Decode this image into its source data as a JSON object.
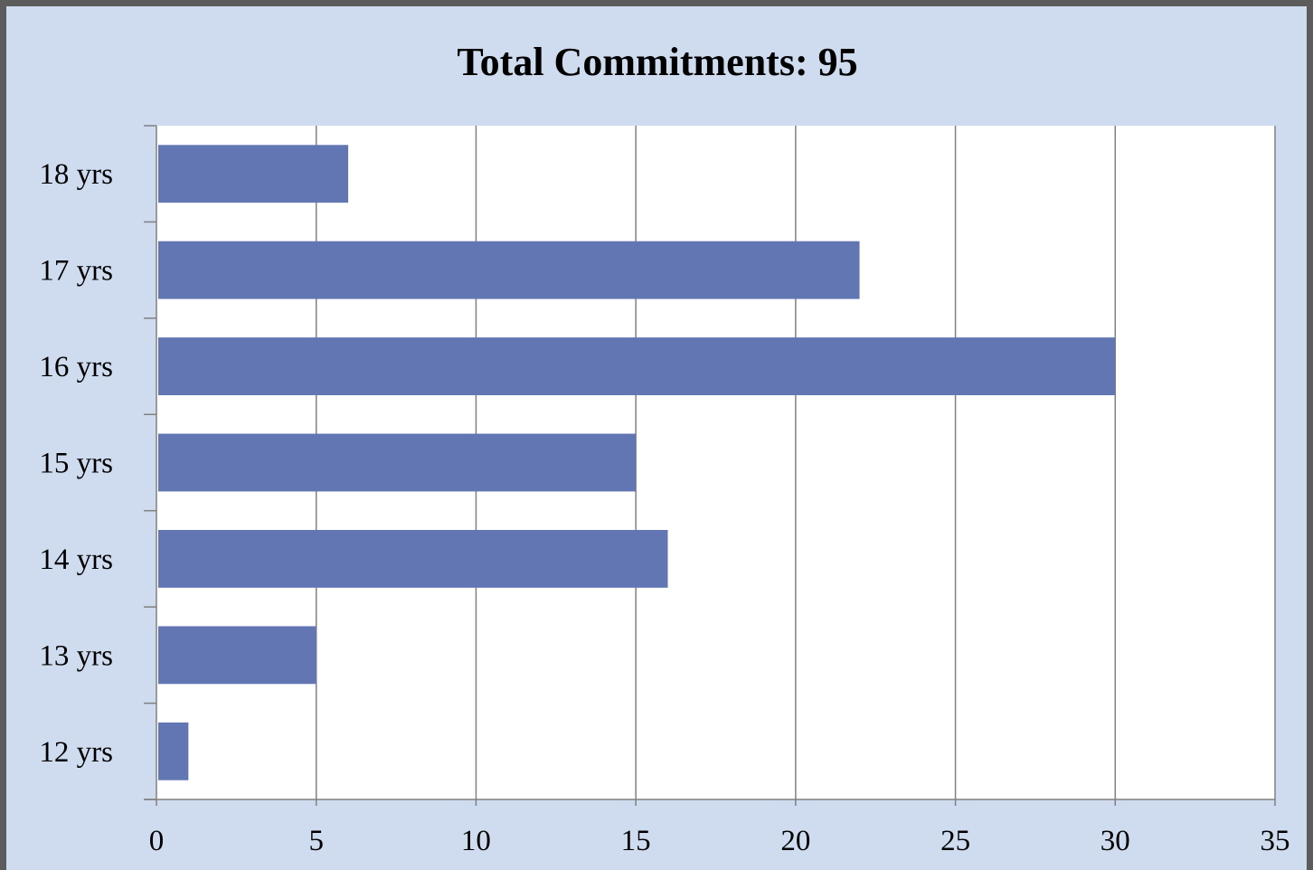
{
  "chart_data": {
    "type": "bar",
    "orientation": "horizontal",
    "title": "Total Commitments: 95",
    "xlabel": "",
    "ylabel": "",
    "categories": [
      "12 yrs",
      "13 yrs",
      "14 yrs",
      "15 yrs",
      "16 yrs",
      "17 yrs",
      "18 yrs"
    ],
    "values": [
      1,
      5,
      16,
      15,
      30,
      22,
      6
    ],
    "xlim": [
      0,
      35
    ],
    "xticks": [
      "0",
      "5",
      "10",
      "15",
      "20",
      "25",
      "30",
      "35"
    ],
    "grid": "vertical",
    "legend": "none",
    "colors": {
      "bar": "#6176b3",
      "background": "#cfdcef",
      "plot_area": "#ffffff",
      "frame": "#5c5c5c",
      "gridline": "#808080",
      "axis": "#808080"
    }
  }
}
